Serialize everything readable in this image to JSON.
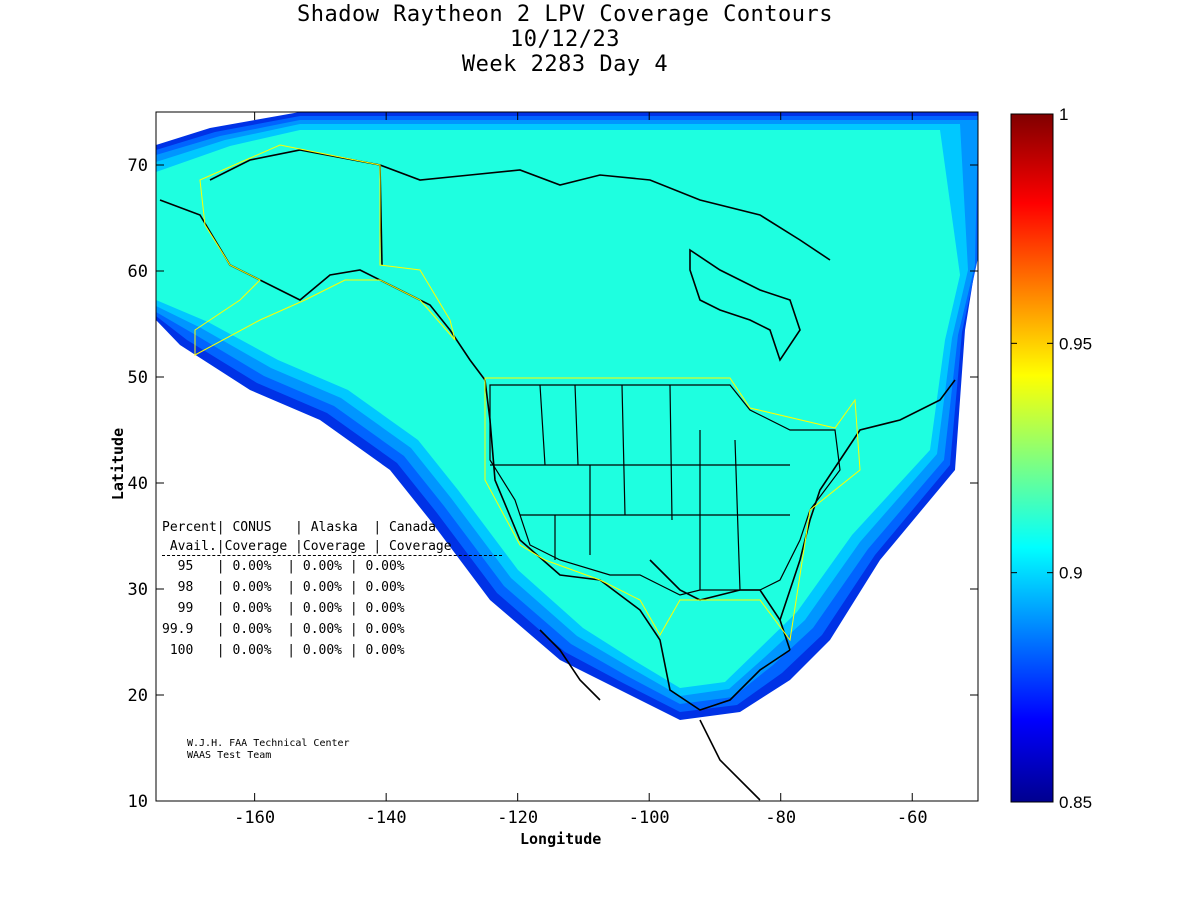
{
  "title": {
    "line1": "Shadow Raytheon 2 LPV Coverage Contours",
    "line2": "10/12/23",
    "line3": "Week 2283 Day 4"
  },
  "axes": {
    "xlabel": "Longitude",
    "ylabel": "Latitude",
    "xticks": [
      "-160",
      "-140",
      "-120",
      "-100",
      "-80",
      "-60"
    ],
    "yticks": [
      "70",
      "60",
      "50",
      "40",
      "30",
      "20",
      "10"
    ],
    "xlim": [
      -175,
      -50
    ],
    "ylim": [
      10,
      75
    ]
  },
  "colorbar": {
    "ticks": [
      "1",
      "0.95",
      "0.9",
      "0.85"
    ],
    "range": [
      0.85,
      1.0
    ]
  },
  "coverage_table": {
    "header1": "Percent| CONUS   | Alaska  | Canada",
    "header2": " Avail.|Coverage |Coverage | Coverage",
    "rows": [
      "  95   | 0.00%  | 0.00% | 0.00%",
      "  98   | 0.00%  | 0.00% | 0.00%",
      "  99   | 0.00%  | 0.00% | 0.00%",
      "99.9   | 0.00%  | 0.00% | 0.00%",
      " 100   | 0.00%  | 0.00% | 0.00%"
    ]
  },
  "credits": {
    "line1": "W.J.H. FAA Technical Center",
    "line2": "WAAS Test Team"
  },
  "colors": {
    "coverage_fill": "#1effe0",
    "contour_bands": [
      "#00c8ff",
      "#0096ff",
      "#0064ff",
      "#0032e6"
    ],
    "coastline": "#000000",
    "service_boundary": "#ffff00"
  }
}
